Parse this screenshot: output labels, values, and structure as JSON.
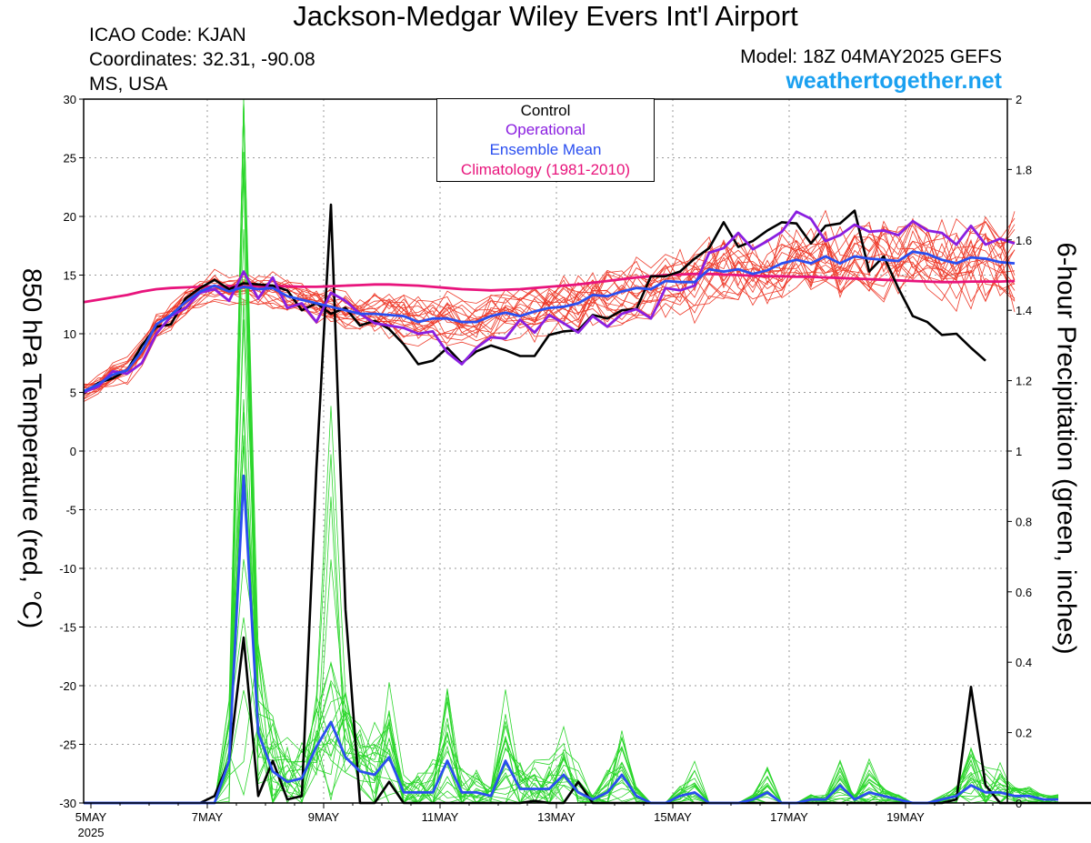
{
  "header": {
    "title": "Jackson-Medgar Wiley Evers Int'l Airport",
    "icao": "ICAO Code: KJAN",
    "coordinates": "Coordinates: 32.31, -90.08",
    "region": "MS, USA",
    "model": "Model: 18Z 04MAY2025 GEFS",
    "website": "weathertogether.net"
  },
  "legend": [
    {
      "label": "Control",
      "color": "#000000"
    },
    {
      "label": "Operational",
      "color": "#8a1ee0"
    },
    {
      "label": "Ensemble Mean",
      "color": "#2a4ef0"
    },
    {
      "label": "Climatology (1981-2010)",
      "color": "#e8147c"
    }
  ],
  "colors": {
    "members_temp": "#ee3a2a",
    "members_precip": "#2bd62b",
    "grid": "#9a9a9a"
  },
  "chart_data": {
    "type": "line",
    "xlabel": "",
    "ylabel_left": "850 hPa Temperature (red, °C)",
    "ylabel_right": "6-hour Precipitation (green, inches)",
    "x_range": [
      "2025-05-04 21Z",
      "2025-05-20 18Z"
    ],
    "x_step_hours": 6,
    "x_ticks": [
      {
        "label": "5MAY",
        "label2": "2025",
        "t": 3
      },
      {
        "label": "7MAY",
        "t": 51
      },
      {
        "label": "9MAY",
        "t": 99
      },
      {
        "label": "11MAY",
        "t": 147
      },
      {
        "label": "13MAY",
        "t": 195
      },
      {
        "label": "15MAY",
        "t": 243
      },
      {
        "label": "17MAY",
        "t": 291
      },
      {
        "label": "19MAY",
        "t": 339
      }
    ],
    "y_left": {
      "min": -30,
      "max": 30,
      "ticks": [
        30,
        25,
        20,
        15,
        10,
        5,
        0,
        -5,
        -10,
        -15,
        -20,
        -25,
        -30
      ]
    },
    "y_right": {
      "min": 0,
      "max": 2,
      "ticks": [
        "2",
        "1.8",
        "1.6",
        "1.4",
        "1.2",
        "1",
        "0.8",
        "0.6",
        "0.4",
        "0.2",
        "0"
      ]
    },
    "grid": true,
    "temperature_series": [
      {
        "name": "Control",
        "color": "#000000",
        "values": [
          4.9,
          5.8,
          6.2,
          6.9,
          9,
          10.6,
          10.8,
          13,
          13.9,
          14.6,
          13.8,
          14.3,
          14.2,
          14.1,
          13.7,
          12,
          12.6,
          11.7,
          12.2,
          10.7,
          11.1,
          10.4,
          9.1,
          7.4,
          7.7,
          8.8,
          7.5,
          8.5,
          9,
          8.6,
          8.1,
          8.1,
          9.9,
          10.2,
          10.3,
          11.6,
          11.3,
          12,
          12.1,
          14.9,
          14.9,
          15.3,
          16.4,
          17.3,
          19.5,
          17.4,
          17.9,
          18.8,
          19.5,
          19.4,
          17.7,
          19.2,
          19.4,
          20.5,
          15.3,
          16.6,
          13.9,
          11.5,
          11,
          9.9,
          10,
          8.8,
          7.7
        ]
      },
      {
        "name": "Operational",
        "color": "#8a1ee0",
        "values": [
          5,
          5.5,
          6.8,
          6.6,
          7.5,
          10,
          11.5,
          12.2,
          13.5,
          13.8,
          12.8,
          15.3,
          13,
          14.8,
          12.2,
          12.6,
          11,
          13.5,
          12.8,
          11.7,
          10.9,
          10.7,
          10.5,
          10,
          10.2,
          8.4,
          7.4,
          8.8,
          9.7,
          9.6,
          11.2,
          10.1,
          11.6,
          10.9,
          10.1,
          11.5,
          10.6,
          11.7,
          12.1,
          11.3,
          13.9,
          13.7,
          14.1,
          16.9,
          17.3,
          18.6,
          17.2,
          17.9,
          18.7,
          20.4,
          19.8,
          17.9,
          18.4,
          19.3,
          18.7,
          18.8,
          18.4,
          19.6,
          18.8,
          18.6,
          17.6,
          19.2,
          17.6,
          18.1,
          17.7
        ]
      },
      {
        "name": "Ensemble Mean",
        "color": "#2a4ef0",
        "values": [
          5.1,
          5.7,
          6.5,
          6.9,
          8.5,
          10.8,
          11.6,
          12.7,
          13.6,
          14.1,
          13.6,
          14,
          13.8,
          13.9,
          13.2,
          12.9,
          12.6,
          12.3,
          12,
          11.7,
          11.7,
          11.6,
          11.5,
          11,
          11.3,
          11.3,
          11,
          11,
          11.5,
          11.8,
          11.5,
          11.9,
          12.2,
          12.3,
          12.6,
          13.3,
          13.2,
          13.6,
          13.9,
          13.8,
          14.5,
          14.4,
          14.4,
          15.5,
          15.3,
          15.5,
          15.1,
          15.4,
          16,
          16.3,
          16,
          16.6,
          16,
          16.6,
          16.4,
          16.3,
          16.2,
          17,
          16.8,
          16.3,
          16,
          16.5,
          16.4,
          16.1,
          16
        ]
      },
      {
        "name": "Climatology (1981-2010)",
        "color": "#e8147c",
        "values": [
          12.7,
          12.9,
          13.1,
          13.3,
          13.6,
          13.8,
          13.9,
          13.95,
          14,
          14.05,
          14.05,
          14.05,
          14.05,
          14.05,
          14.05,
          14.0,
          14.0,
          14.05,
          14.1,
          14.15,
          14.2,
          14.2,
          14.15,
          14.1,
          14.0,
          13.9,
          13.8,
          13.75,
          13.7,
          13.75,
          13.8,
          13.9,
          14.0,
          14.1,
          14.2,
          14.35,
          14.5,
          14.65,
          14.8,
          14.9,
          15.0,
          15.05,
          15.1,
          15.1,
          15.05,
          15.0,
          14.95,
          14.9,
          14.9,
          14.85,
          14.85,
          14.8,
          14.75,
          14.7,
          14.65,
          14.6,
          14.55,
          14.5,
          14.45,
          14.4,
          14.4,
          14.45,
          14.45,
          14.45,
          14.5
        ]
      }
    ],
    "precip_series": [
      {
        "name": "Control",
        "color": "#000000",
        "values": [
          0,
          0,
          0,
          0,
          0,
          0,
          0,
          0,
          0,
          0.02,
          0.12,
          0.47,
          0.02,
          0.12,
          0.01,
          0.02,
          0.95,
          1.7,
          0.55,
          0,
          0,
          0.06,
          0,
          0,
          0,
          0,
          0,
          0,
          0,
          0,
          0,
          0.006,
          0,
          0,
          0.06,
          0,
          0,
          0,
          0,
          0,
          0,
          0,
          0,
          0,
          0,
          0,
          0,
          0,
          0,
          0,
          0,
          0,
          0,
          0,
          0,
          0,
          0,
          0,
          0,
          0,
          0.01,
          0.33,
          0.05,
          0,
          0,
          0,
          0,
          0,
          0,
          0,
          0
        ]
      },
      {
        "name": "Ensemble Mean",
        "color": "#2a4ef0",
        "values": [
          0,
          0,
          0,
          0,
          0,
          0,
          0,
          0,
          0,
          0,
          0.12,
          0.93,
          0.2,
          0.09,
          0.06,
          0.07,
          0.16,
          0.23,
          0.13,
          0.09,
          0.08,
          0.13,
          0.03,
          0.03,
          0.03,
          0.12,
          0.03,
          0.03,
          0.02,
          0.12,
          0.04,
          0.04,
          0.04,
          0.08,
          0.03,
          0.01,
          0.03,
          0.08,
          0.02,
          0,
          0,
          0.02,
          0.03,
          0,
          0,
          0,
          0.01,
          0.03,
          0,
          0,
          0.01,
          0.01,
          0.05,
          0.01,
          0.03,
          0.02,
          0.01,
          0,
          0,
          0.01,
          0.02,
          0.05,
          0.03,
          0.03,
          0.02,
          0.02,
          0.01,
          0.01
        ]
      }
    ]
  }
}
